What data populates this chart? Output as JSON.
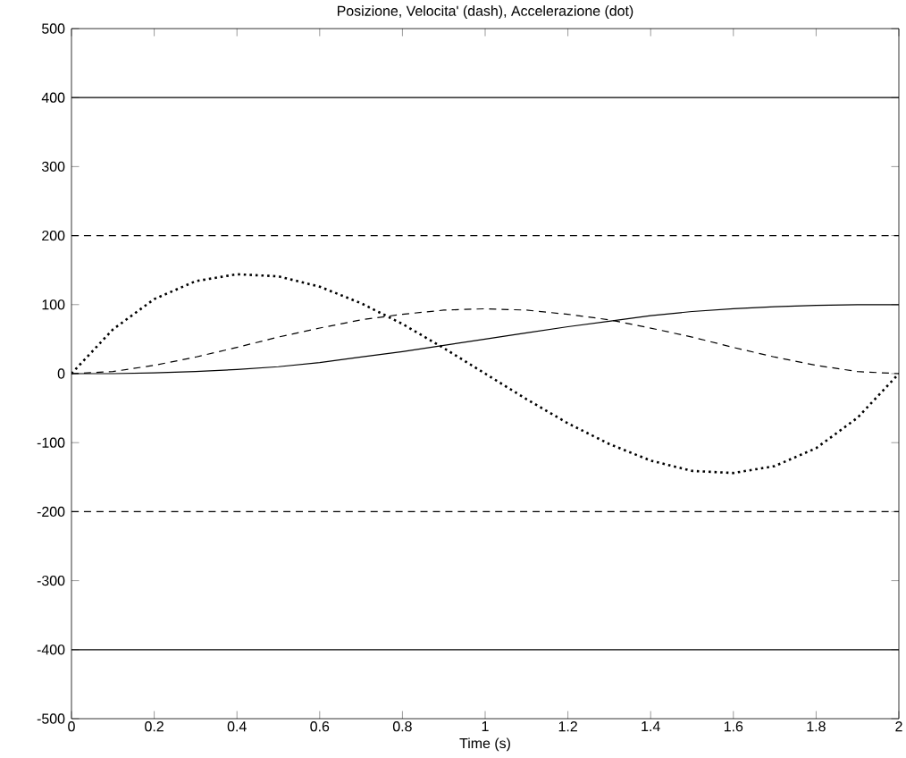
{
  "chart_data": {
    "type": "line",
    "title": "Posizione, Velocita' (dash), Accelerazione (dot)",
    "xlabel": "Time  (s)",
    "x": [
      0,
      0.1,
      0.2,
      0.3,
      0.4,
      0.5,
      0.6,
      0.7,
      0.8,
      0.9,
      1.0,
      1.1,
      1.2,
      1.3,
      1.4,
      1.5,
      1.6,
      1.7,
      1.8,
      1.9,
      2.0
    ],
    "series": [
      {
        "color": "#000000",
        "line_style": "solid",
        "values": [
          0,
          0,
          1,
          3,
          6,
          10,
          16,
          24,
          32,
          41,
          50,
          59,
          68,
          76,
          84,
          90,
          94,
          97,
          99,
          100,
          100
        ]
      },
      {
        "color": "#000000",
        "line_style": "dashed",
        "values": [
          0,
          3,
          12,
          24,
          38,
          53,
          66,
          78,
          86,
          92,
          94,
          92,
          86,
          78,
          66,
          53,
          38,
          24,
          12,
          3,
          0
        ]
      },
      {
        "color": "#000000",
        "line_style": "dotted",
        "values": [
          0,
          64,
          108,
          134,
          144,
          141,
          126,
          102,
          72,
          37,
          0,
          -37,
          -72,
          -102,
          -126,
          -141,
          -144,
          -134,
          -108,
          -64,
          0
        ]
      }
    ],
    "ref_lines": [
      {
        "axis": "y",
        "value": 400,
        "color": "#000000",
        "line_style": "solid"
      },
      {
        "axis": "y",
        "value": -400,
        "color": "#000000",
        "line_style": "solid"
      },
      {
        "axis": "y",
        "value": 200,
        "color": "#000000",
        "line_style": "dashed"
      },
      {
        "axis": "y",
        "value": -200,
        "color": "#000000",
        "line_style": "dashed"
      }
    ],
    "xlim": [
      0,
      2
    ],
    "ylim": [
      -500,
      500
    ],
    "xticks": [
      0,
      0.2,
      0.4,
      0.6,
      0.8,
      1,
      1.2,
      1.4,
      1.6,
      1.8,
      2
    ],
    "yticks": [
      -500,
      -400,
      -300,
      -200,
      -100,
      0,
      100,
      200,
      300,
      400,
      500
    ],
    "grid": false,
    "marker": "none"
  }
}
